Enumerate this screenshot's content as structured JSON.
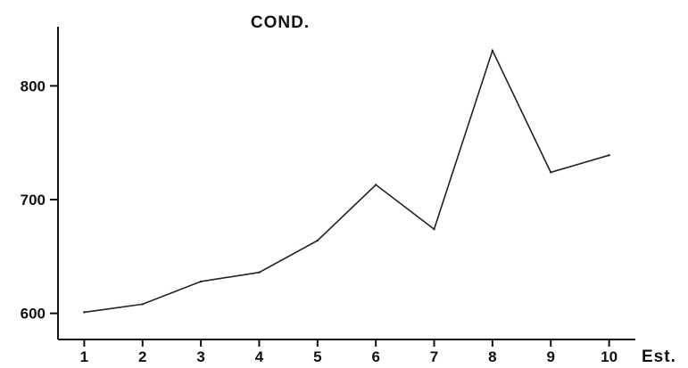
{
  "chart_data": {
    "type": "line",
    "title": "COND.",
    "xlabel": "Est.",
    "ylabel": "",
    "x": [
      1,
      2,
      3,
      4,
      5,
      6,
      7,
      8,
      9,
      10
    ],
    "x_tick_labels": [
      "1",
      "2",
      "3",
      "4",
      "5",
      "6",
      "7",
      "8",
      "9",
      "10"
    ],
    "y_ticks": [
      600,
      700,
      800
    ],
    "y_tick_labels": [
      "600",
      "700",
      "800"
    ],
    "series": [
      {
        "values": [
          601,
          608,
          628,
          636,
          664,
          713,
          674,
          831,
          724,
          739
        ]
      }
    ],
    "xlim": [
      0.55,
      10.45
    ],
    "ylim": [
      577,
      852
    ],
    "grid": false,
    "colors": {
      "line": "#222222",
      "axis": "#111111"
    }
  }
}
